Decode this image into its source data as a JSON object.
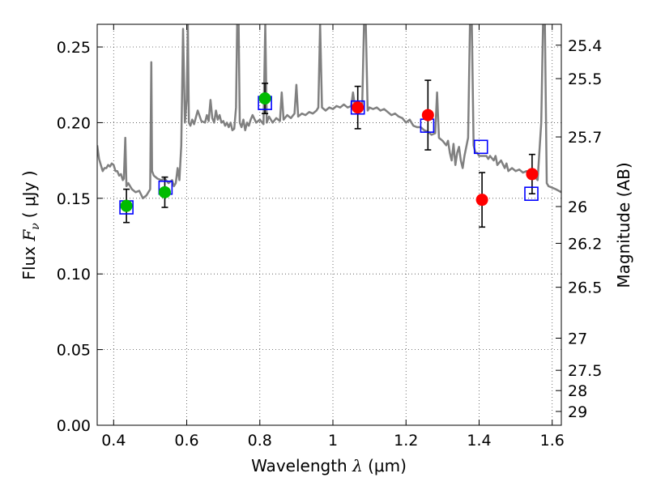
{
  "chart_data": {
    "type": "scatter",
    "xlabel": {
      "prefix": "Wavelength",
      "lambda": "λ",
      "unit": "(μm)"
    },
    "ylabel": {
      "prefix": "Flux",
      "f": "F",
      "nu": "ν",
      "unit": "( μJy )"
    },
    "y2label": "Magnitude (AB)",
    "xlim": [
      0.355,
      1.625
    ],
    "ylim": [
      0.0,
      0.265
    ],
    "grid": true,
    "xticks": [
      {
        "value": 0.4,
        "label": "0.4"
      },
      {
        "value": 0.6,
        "label": "0.6"
      },
      {
        "value": 0.8,
        "label": "0.8"
      },
      {
        "value": 1.0,
        "label": "1"
      },
      {
        "value": 1.2,
        "label": "1.2"
      },
      {
        "value": 1.4,
        "label": "1.4"
      },
      {
        "value": 1.6,
        "label": "1.6"
      }
    ],
    "yticks": [
      {
        "value": 0.0,
        "label": "0.00"
      },
      {
        "value": 0.05,
        "label": "0.05"
      },
      {
        "value": 0.1,
        "label": "0.10"
      },
      {
        "value": 0.15,
        "label": "0.15"
      },
      {
        "value": 0.2,
        "label": "0.20"
      },
      {
        "value": 0.25,
        "label": "0.25"
      }
    ],
    "magnitude_ticks": [
      {
        "mag": 25.4,
        "label": "25.4"
      },
      {
        "mag": 25.5,
        "label": "25.5"
      },
      {
        "mag": 25.7,
        "label": "25.7"
      },
      {
        "mag": 26.0,
        "label": "26"
      },
      {
        "mag": 26.2,
        "label": "26.2"
      },
      {
        "mag": 26.5,
        "label": "26.5"
      },
      {
        "mag": 27.0,
        "label": "27"
      },
      {
        "mag": 27.5,
        "label": "27.5"
      },
      {
        "mag": 28.0,
        "label": "28"
      },
      {
        "mag": 29.0,
        "label": "29"
      }
    ],
    "colors": {
      "model_spectrum": "#808080",
      "green_points": "#00bb00",
      "red_points": "#ff0000",
      "model_photometry": "#0000ff",
      "error_bars": "#000000"
    },
    "model_spectrum": [
      [
        0.355,
        0.185
      ],
      [
        0.36,
        0.176
      ],
      [
        0.365,
        0.172
      ],
      [
        0.37,
        0.168
      ],
      [
        0.375,
        0.17
      ],
      [
        0.38,
        0.17
      ],
      [
        0.385,
        0.172
      ],
      [
        0.39,
        0.171
      ],
      [
        0.395,
        0.173
      ],
      [
        0.4,
        0.172
      ],
      [
        0.405,
        0.168
      ],
      [
        0.41,
        0.168
      ],
      [
        0.415,
        0.165
      ],
      [
        0.42,
        0.166
      ],
      [
        0.425,
        0.162
      ],
      [
        0.428,
        0.163
      ],
      [
        0.432,
        0.19
      ],
      [
        0.435,
        0.158
      ],
      [
        0.44,
        0.16
      ],
      [
        0.45,
        0.156
      ],
      [
        0.46,
        0.154
      ],
      [
        0.47,
        0.155
      ],
      [
        0.48,
        0.15
      ],
      [
        0.49,
        0.152
      ],
      [
        0.5,
        0.156
      ],
      [
        0.503,
        0.24
      ],
      [
        0.505,
        0.168
      ],
      [
        0.51,
        0.165
      ],
      [
        0.52,
        0.163
      ],
      [
        0.53,
        0.162
      ],
      [
        0.54,
        0.163
      ],
      [
        0.55,
        0.16
      ],
      [
        0.56,
        0.162
      ],
      [
        0.565,
        0.158
      ],
      [
        0.57,
        0.16
      ],
      [
        0.575,
        0.17
      ],
      [
        0.58,
        0.162
      ],
      [
        0.585,
        0.185
      ],
      [
        0.59,
        0.262
      ],
      [
        0.595,
        0.2
      ],
      [
        0.6,
        0.215
      ],
      [
        0.603,
        0.265
      ],
      [
        0.606,
        0.2
      ],
      [
        0.61,
        0.198
      ],
      [
        0.615,
        0.202
      ],
      [
        0.62,
        0.199
      ],
      [
        0.63,
        0.208
      ],
      [
        0.64,
        0.201
      ],
      [
        0.65,
        0.2
      ],
      [
        0.655,
        0.205
      ],
      [
        0.66,
        0.201
      ],
      [
        0.665,
        0.215
      ],
      [
        0.67,
        0.203
      ],
      [
        0.675,
        0.2
      ],
      [
        0.68,
        0.208
      ],
      [
        0.685,
        0.202
      ],
      [
        0.69,
        0.205
      ],
      [
        0.695,
        0.2
      ],
      [
        0.7,
        0.201
      ],
      [
        0.705,
        0.198
      ],
      [
        0.71,
        0.2
      ],
      [
        0.715,
        0.197
      ],
      [
        0.72,
        0.2
      ],
      [
        0.725,
        0.195
      ],
      [
        0.73,
        0.196
      ],
      [
        0.735,
        0.21
      ],
      [
        0.738,
        0.265
      ],
      [
        0.742,
        0.265
      ],
      [
        0.745,
        0.2
      ],
      [
        0.75,
        0.197
      ],
      [
        0.755,
        0.202
      ],
      [
        0.76,
        0.195
      ],
      [
        0.765,
        0.2
      ],
      [
        0.77,
        0.198
      ],
      [
        0.775,
        0.202
      ],
      [
        0.78,
        0.205
      ],
      [
        0.79,
        0.2
      ],
      [
        0.8,
        0.202
      ],
      [
        0.81,
        0.199
      ],
      [
        0.815,
        0.265
      ],
      [
        0.819,
        0.2
      ],
      [
        0.825,
        0.204
      ],
      [
        0.835,
        0.2
      ],
      [
        0.845,
        0.203
      ],
      [
        0.855,
        0.201
      ],
      [
        0.86,
        0.22
      ],
      [
        0.865,
        0.202
      ],
      [
        0.875,
        0.205
      ],
      [
        0.885,
        0.203
      ],
      [
        0.895,
        0.206
      ],
      [
        0.9,
        0.225
      ],
      [
        0.905,
        0.204
      ],
      [
        0.915,
        0.206
      ],
      [
        0.925,
        0.205
      ],
      [
        0.935,
        0.207
      ],
      [
        0.945,
        0.206
      ],
      [
        0.955,
        0.208
      ],
      [
        0.96,
        0.21
      ],
      [
        0.965,
        0.265
      ],
      [
        0.97,
        0.21
      ],
      [
        0.98,
        0.208
      ],
      [
        0.99,
        0.21
      ],
      [
        1.0,
        0.209
      ],
      [
        1.01,
        0.211
      ],
      [
        1.02,
        0.21
      ],
      [
        1.03,
        0.212
      ],
      [
        1.04,
        0.21
      ],
      [
        1.05,
        0.211
      ],
      [
        1.055,
        0.22
      ],
      [
        1.06,
        0.211
      ],
      [
        1.07,
        0.212
      ],
      [
        1.08,
        0.21
      ],
      [
        1.085,
        0.265
      ],
      [
        1.09,
        0.265
      ],
      [
        1.095,
        0.208
      ],
      [
        1.1,
        0.21
      ],
      [
        1.11,
        0.209
      ],
      [
        1.12,
        0.21
      ],
      [
        1.13,
        0.208
      ],
      [
        1.14,
        0.209
      ],
      [
        1.15,
        0.207
      ],
      [
        1.16,
        0.205
      ],
      [
        1.17,
        0.206
      ],
      [
        1.18,
        0.204
      ],
      [
        1.19,
        0.203
      ],
      [
        1.2,
        0.2
      ],
      [
        1.21,
        0.202
      ],
      [
        1.22,
        0.198
      ],
      [
        1.23,
        0.197
      ],
      [
        1.24,
        0.197
      ],
      [
        1.25,
        0.195
      ],
      [
        1.26,
        0.194
      ],
      [
        1.27,
        0.192
      ],
      [
        1.28,
        0.193
      ],
      [
        1.285,
        0.22
      ],
      [
        1.29,
        0.19
      ],
      [
        1.3,
        0.188
      ],
      [
        1.31,
        0.185
      ],
      [
        1.315,
        0.188
      ],
      [
        1.32,
        0.18
      ],
      [
        1.325,
        0.175
      ],
      [
        1.33,
        0.186
      ],
      [
        1.335,
        0.172
      ],
      [
        1.34,
        0.18
      ],
      [
        1.345,
        0.184
      ],
      [
        1.35,
        0.175
      ],
      [
        1.355,
        0.17
      ],
      [
        1.36,
        0.178
      ],
      [
        1.37,
        0.19
      ],
      [
        1.375,
        0.265
      ],
      [
        1.38,
        0.265
      ],
      [
        1.385,
        0.185
      ],
      [
        1.39,
        0.18
      ],
      [
        1.395,
        0.18
      ],
      [
        1.4,
        0.178
      ],
      [
        1.41,
        0.178
      ],
      [
        1.42,
        0.178
      ],
      [
        1.425,
        0.176
      ],
      [
        1.43,
        0.178
      ],
      [
        1.44,
        0.175
      ],
      [
        1.445,
        0.178
      ],
      [
        1.45,
        0.172
      ],
      [
        1.46,
        0.175
      ],
      [
        1.47,
        0.17
      ],
      [
        1.475,
        0.173
      ],
      [
        1.48,
        0.168
      ],
      [
        1.49,
        0.17
      ],
      [
        1.5,
        0.168
      ],
      [
        1.51,
        0.169
      ],
      [
        1.52,
        0.167
      ],
      [
        1.53,
        0.168
      ],
      [
        1.54,
        0.166
      ],
      [
        1.545,
        0.168
      ],
      [
        1.55,
        0.165
      ],
      [
        1.56,
        0.162
      ],
      [
        1.57,
        0.2
      ],
      [
        1.575,
        0.265
      ],
      [
        1.58,
        0.265
      ],
      [
        1.585,
        0.16
      ],
      [
        1.59,
        0.158
      ],
      [
        1.6,
        0.157
      ],
      [
        1.61,
        0.156
      ],
      [
        1.625,
        0.154
      ]
    ],
    "observed_points": [
      {
        "x": 0.435,
        "y": 0.145,
        "err": 0.011,
        "color": "green"
      },
      {
        "x": 0.54,
        "y": 0.154,
        "err": 0.01,
        "color": "green"
      },
      {
        "x": 0.814,
        "y": 0.216,
        "err": 0.01,
        "color": "green"
      },
      {
        "x": 1.068,
        "y": 0.21,
        "err": 0.014,
        "color": "red"
      },
      {
        "x": 1.26,
        "y": 0.205,
        "err": 0.023,
        "color": "red"
      },
      {
        "x": 1.408,
        "y": 0.149,
        "err": 0.018,
        "color": "red"
      },
      {
        "x": 1.545,
        "y": 0.166,
        "err": 0.013,
        "color": "red"
      }
    ],
    "model_photometry": [
      {
        "x": 0.435,
        "y": 0.144
      },
      {
        "x": 0.542,
        "y": 0.157
      },
      {
        "x": 0.814,
        "y": 0.213
      },
      {
        "x": 1.068,
        "y": 0.21
      },
      {
        "x": 1.258,
        "y": 0.198
      },
      {
        "x": 1.405,
        "y": 0.184
      },
      {
        "x": 1.543,
        "y": 0.153
      }
    ]
  }
}
